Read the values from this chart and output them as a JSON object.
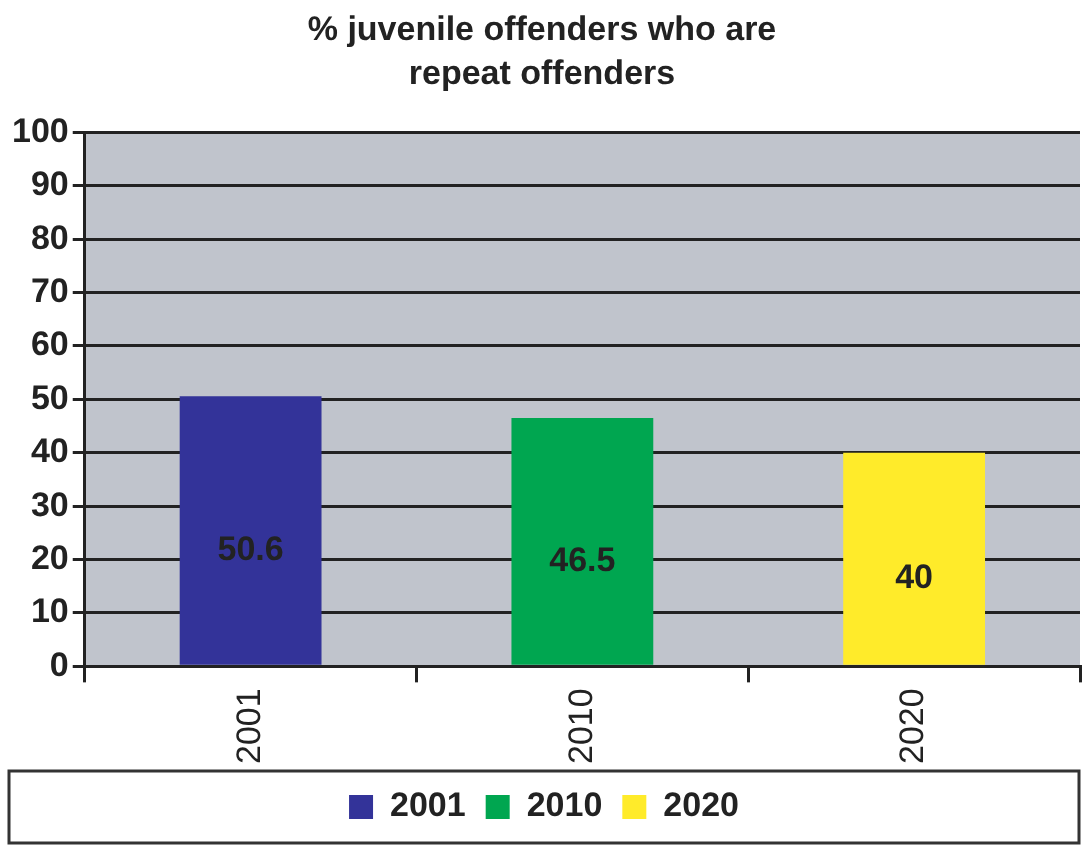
{
  "chart_data": {
    "type": "bar",
    "title": "% juvenile offenders who are repeat offenders",
    "categories": [
      "2001",
      "2010",
      "2020"
    ],
    "series": [
      {
        "name": "2001",
        "color": "#333399",
        "values": [
          50.6,
          null,
          null
        ]
      },
      {
        "name": "2010",
        "color": "#00a650",
        "values": [
          null,
          46.5,
          null
        ]
      },
      {
        "name": "2020",
        "color": "#ffeb2a",
        "values": [
          null,
          null,
          40
        ]
      }
    ],
    "ylim": [
      0,
      100
    ],
    "yticks": [
      0,
      10,
      20,
      30,
      40,
      50,
      60,
      70,
      80,
      90,
      100
    ],
    "grid": "y",
    "legend": "bottom",
    "data_labels": true
  }
}
